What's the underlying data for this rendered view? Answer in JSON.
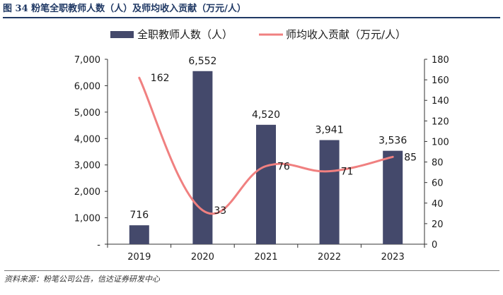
{
  "figure": {
    "title": "图 34  粉笔全职教师人数（人）及师均收入贡献（万元/人）",
    "source": "资料来源：粉笔公司公告，信达证券研发中心"
  },
  "chart_data": {
    "type": "bar",
    "categories": [
      "2019",
      "2020",
      "2021",
      "2022",
      "2023"
    ],
    "series": [
      {
        "name": "全职教师人数（人）",
        "type": "bar",
        "axis": "left",
        "color": "#44496b",
        "values": [
          716,
          6552,
          4520,
          3941,
          3536
        ],
        "labels": [
          "716",
          "6,552",
          "4,520",
          "3,941",
          "3,536"
        ]
      },
      {
        "name": "师均收入贡献（万元/人）",
        "type": "line",
        "axis": "right",
        "color": "#f08080",
        "smooth": true,
        "values": [
          162,
          33,
          76,
          71,
          85
        ],
        "labels": [
          "162",
          "33",
          "76",
          "71",
          "85"
        ]
      }
    ],
    "y_left": {
      "range": [
        0,
        7000
      ],
      "ticks": [
        "-",
        "1,000",
        "2,000",
        "3,000",
        "4,000",
        "5,000",
        "6,000",
        "7,000"
      ]
    },
    "y_right": {
      "range": [
        0,
        180
      ],
      "ticks": [
        "0",
        "20",
        "40",
        "60",
        "80",
        "100",
        "120",
        "140",
        "160",
        "180"
      ]
    },
    "grid": false,
    "legend_position": "top"
  }
}
